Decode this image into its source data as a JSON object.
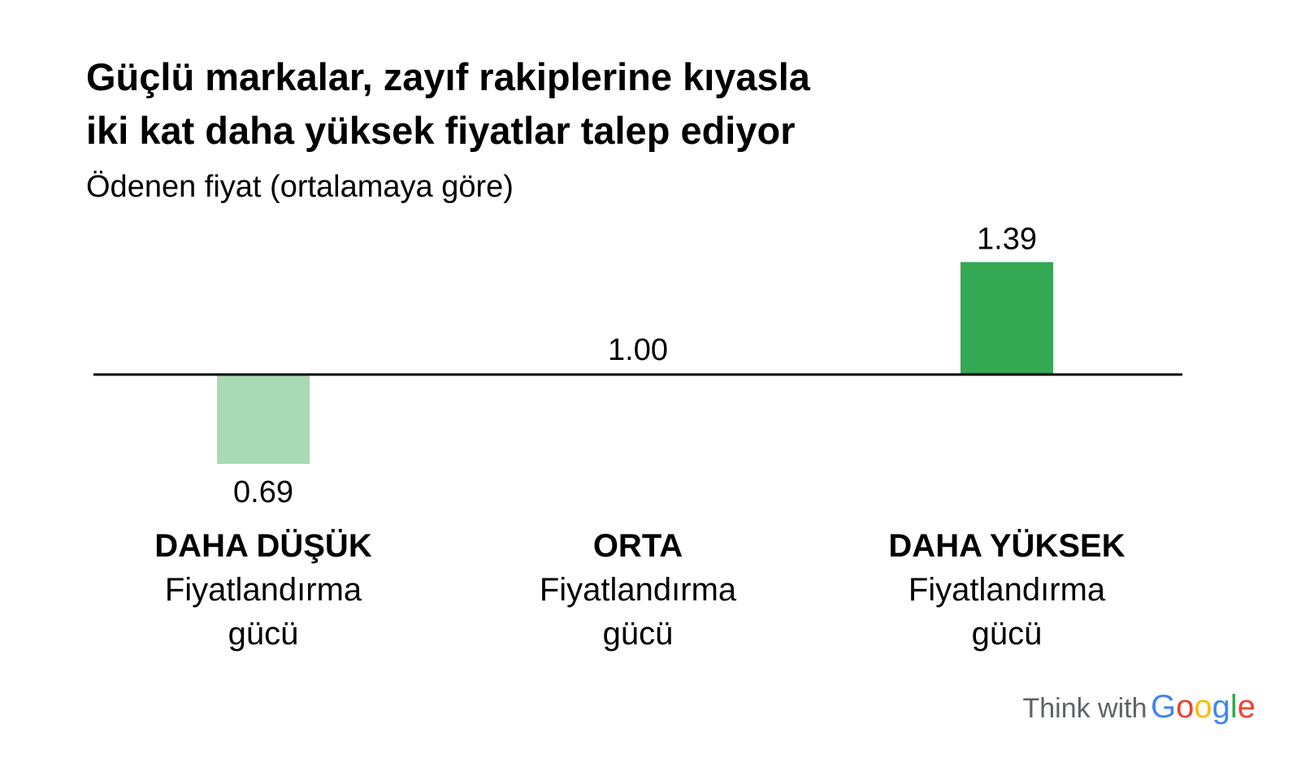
{
  "chart_data": {
    "type": "bar",
    "title_lines": [
      "Güçlü markalar, zayıf rakiplerine kıyasla",
      "iki kat daha yüksek fiyatlar talep ediyor"
    ],
    "subtitle": "Ödenen fiyat (ortalamaya göre)",
    "baseline": 1.0,
    "categories": [
      "DAHA DÜŞÜK",
      "ORTA",
      "DAHA YÜKSEK"
    ],
    "category_sublabels": [
      "Fiyatlandırma",
      "gücü"
    ],
    "values": [
      0.69,
      1.0,
      1.39
    ],
    "value_labels": [
      "0.69",
      "1.00",
      "1.39"
    ],
    "bar_colors": [
      "#a8dab5",
      "#a8dab5",
      "#34a853"
    ],
    "axis_color": "#000000",
    "grid": false,
    "legend": "none"
  },
  "brand": {
    "prefix": "Think with",
    "logo_letters": [
      "G",
      "o",
      "o",
      "g",
      "l",
      "e"
    ],
    "logo_colors": [
      "#4285f4",
      "#ea4335",
      "#fbbc05",
      "#4285f4",
      "#34a853",
      "#ea4335"
    ]
  }
}
